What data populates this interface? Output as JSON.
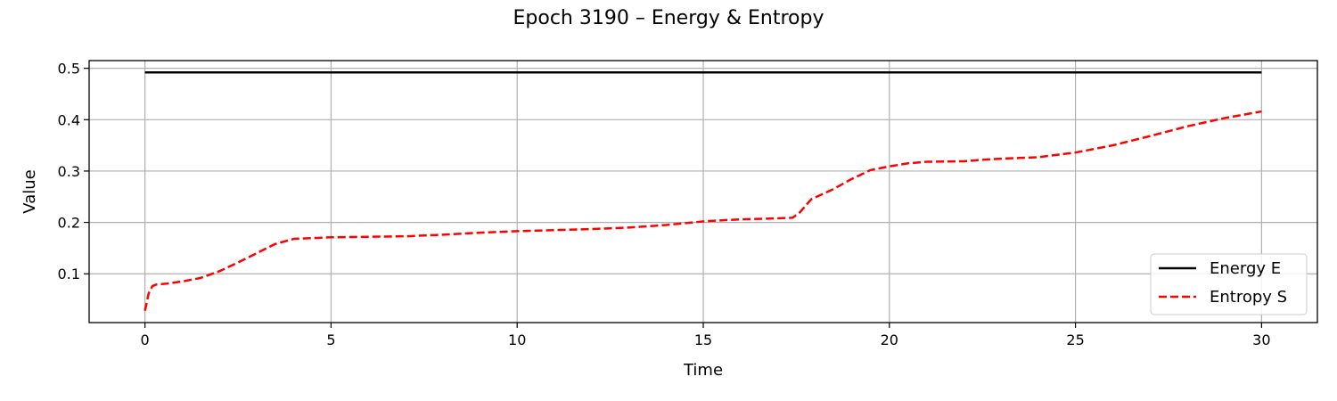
{
  "chart_data": {
    "type": "line",
    "title": "Epoch 3190 – Energy & Entropy",
    "xlabel": "Time",
    "ylabel": "Value",
    "xlim": [
      -1.5,
      31.5
    ],
    "ylim": [
      0.005,
      0.515
    ],
    "xticks": [
      0,
      5,
      10,
      15,
      20,
      25,
      30
    ],
    "yticks": [
      0.1,
      0.2,
      0.3,
      0.4,
      0.5
    ],
    "grid": true,
    "legend_position": "lower-right",
    "series": [
      {
        "name": "Energy E",
        "color": "#000000",
        "style": "solid",
        "x": [
          0,
          30
        ],
        "y": [
          0.492,
          0.492
        ]
      },
      {
        "name": "Entropy S",
        "color": "#ff0000",
        "style": "dashed",
        "x": [
          0,
          0.05,
          0.1,
          0.2,
          0.3,
          0.6,
          1.0,
          1.5,
          2.0,
          2.5,
          3.0,
          3.5,
          4.0,
          5.0,
          6.0,
          7.0,
          8.0,
          9.0,
          10.0,
          11.0,
          12.0,
          13.0,
          14.0,
          15.0,
          16.0,
          17.0,
          17.4,
          17.6,
          17.9,
          18.5,
          19.0,
          19.5,
          20.0,
          20.5,
          21.0,
          22.0,
          22.5,
          23.0,
          24.0,
          25.0,
          26.0,
          27.0,
          28.0,
          29.0,
          30.0
        ],
        "y": [
          0.028,
          0.045,
          0.062,
          0.076,
          0.079,
          0.081,
          0.085,
          0.092,
          0.105,
          0.122,
          0.14,
          0.158,
          0.168,
          0.171,
          0.172,
          0.173,
          0.176,
          0.18,
          0.183,
          0.185,
          0.187,
          0.19,
          0.195,
          0.202,
          0.206,
          0.208,
          0.209,
          0.22,
          0.245,
          0.265,
          0.285,
          0.302,
          0.309,
          0.315,
          0.318,
          0.319,
          0.322,
          0.324,
          0.327,
          0.336,
          0.35,
          0.368,
          0.387,
          0.403,
          0.416
        ]
      }
    ]
  }
}
